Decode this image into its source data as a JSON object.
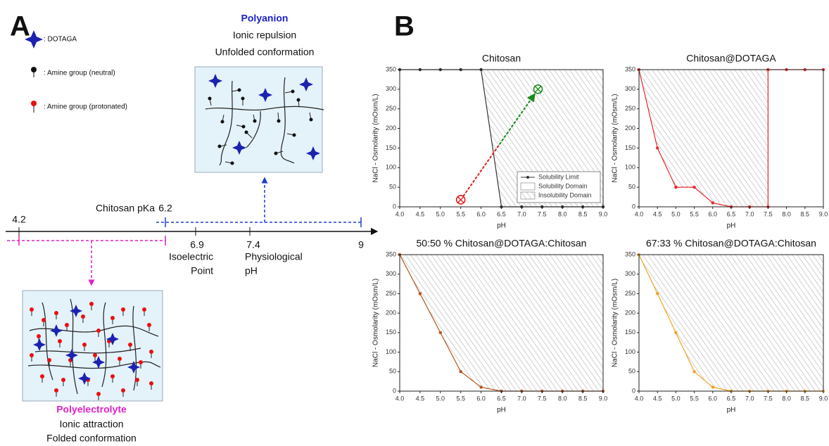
{
  "panel_a": {
    "label": "A",
    "legend": [
      ": DOTAGA",
      ": Amine group (neutral)",
      ": Amine group (protonated)"
    ],
    "top_box": {
      "title": "Polyanion",
      "lines": [
        "Ionic repulsion",
        "Unfolded conformation"
      ]
    },
    "bottom_box": {
      "title": "Polyelectrolyte",
      "lines": [
        "Ionic attraction",
        "Folded conformation"
      ]
    },
    "axis": {
      "ticks": [
        "4.2",
        "6.2",
        "6.9",
        "7.4",
        "9"
      ],
      "pka_label": "Chitosan pKa",
      "isoelectric": [
        "Isoelectric",
        "Point"
      ],
      "physiological": [
        "Physiological",
        "pH"
      ]
    }
  },
  "panel_b_label": "B",
  "chart_data": [
    {
      "type": "line",
      "title": "Chitosan",
      "xlabel": "pH",
      "ylabel": "NaCl - Osmolarity (mOsm/L)",
      "x": [
        4,
        4.5,
        5,
        5.5,
        6,
        6.5,
        7,
        7.5,
        8,
        8.5,
        9
      ],
      "series": [
        {
          "name": "Solubility Limit",
          "color": "#333333",
          "values": [
            350,
            350,
            350,
            350,
            350,
            0,
            0,
            0,
            0,
            0,
            0
          ]
        }
      ],
      "domains": [
        "Solubility Domain",
        "Insolubility Domain"
      ],
      "legend": "lower right",
      "markers": [
        {
          "x": 5.5,
          "y": 18,
          "color": "#e02020"
        },
        {
          "x": 7.4,
          "y": 300,
          "color": "#1a8a1a"
        }
      ],
      "xlim": [
        4,
        9
      ],
      "ylim": [
        0,
        350
      ],
      "xticks": [
        {
          "value": 4,
          "label": "4.0"
        },
        {
          "value": 4.5,
          "label": "4.5"
        },
        {
          "value": 5,
          "label": "5.0"
        },
        {
          "value": 5.5,
          "label": "5.5"
        },
        {
          "value": 6,
          "label": "6.0"
        },
        {
          "value": 6.5,
          "label": "6.5"
        },
        {
          "value": 7,
          "label": "7.0"
        },
        {
          "value": 7.5,
          "label": "7.5"
        },
        {
          "value": 8,
          "label": "8.0"
        },
        {
          "value": 8.5,
          "label": "8.5"
        },
        {
          "value": 9,
          "label": "9.0"
        }
      ],
      "yticks": [
        0,
        50,
        100,
        150,
        200,
        250,
        300,
        350
      ]
    },
    {
      "type": "line",
      "title": "Chitosan@DOTAGA",
      "xlabel": "pH",
      "ylabel": "NaCl - Osmolarity (mOsm/L)",
      "x": [
        4,
        4.5,
        5,
        5.5,
        6,
        6.5,
        7,
        7.5,
        7.5,
        8,
        8.5,
        9
      ],
      "series": [
        {
          "color": "#e8262a",
          "values": [
            350,
            150,
            50,
            50,
            10,
            0,
            0,
            0,
            350,
            350,
            350,
            350
          ]
        }
      ],
      "xlim": [
        4,
        9
      ],
      "ylim": [
        0,
        350
      ],
      "xticks": [
        {
          "value": 4,
          "label": "4.0"
        },
        {
          "value": 4.5,
          "label": "4.5"
        },
        {
          "value": 5,
          "label": "5.0"
        },
        {
          "value": 5.5,
          "label": "5.5"
        },
        {
          "value": 6,
          "label": "6.0"
        },
        {
          "value": 6.5,
          "label": "6.5"
        },
        {
          "value": 7,
          "label": "7.0"
        },
        {
          "value": 7.5,
          "label": "7.5"
        },
        {
          "value": 8,
          "label": "8.0"
        },
        {
          "value": 8.5,
          "label": "8.5"
        },
        {
          "value": 9,
          "label": "9.0"
        }
      ],
      "yticks": [
        0,
        50,
        100,
        150,
        200,
        250,
        300,
        350
      ]
    },
    {
      "type": "line",
      "title": "50:50 % Chitosan@DOTAGA:Chitosan",
      "xlabel": "pH",
      "ylabel": "NaCl - Osmolarity (mOsm/L)",
      "x": [
        4,
        4.5,
        5,
        5.5,
        6,
        6.5,
        7,
        7.5,
        8,
        8.5,
        9
      ],
      "series": [
        {
          "color": "#b5541c",
          "values": [
            350,
            250,
            150,
            50,
            10,
            0,
            0,
            0,
            0,
            0,
            0
          ]
        }
      ],
      "xlim": [
        4,
        9
      ],
      "ylim": [
        0,
        350
      ],
      "xticks": [
        {
          "value": 4,
          "label": "4.0"
        },
        {
          "value": 4.5,
          "label": "4.5"
        },
        {
          "value": 5,
          "label": "5.0"
        },
        {
          "value": 5.5,
          "label": "5.5"
        },
        {
          "value": 6,
          "label": "6.0"
        },
        {
          "value": 6.5,
          "label": "6.5"
        },
        {
          "value": 7,
          "label": "7.0"
        },
        {
          "value": 7.5,
          "label": "7.5"
        },
        {
          "value": 8,
          "label": "8.0"
        },
        {
          "value": 8.5,
          "label": "8.5"
        },
        {
          "value": 9,
          "label": "9.0"
        }
      ],
      "yticks": [
        0,
        50,
        100,
        150,
        200,
        250,
        300,
        350
      ]
    },
    {
      "type": "line",
      "title": "67:33 % Chitosan@DOTAGA:Chitosan",
      "xlabel": "pH",
      "ylabel": "NaCl - Osmolarity (mOsm/L)",
      "x": [
        4,
        4.5,
        5,
        5.5,
        6,
        6.5,
        7,
        7.5,
        8,
        8.5,
        9
      ],
      "series": [
        {
          "color": "#f5a020",
          "values": [
            350,
            250,
            150,
            50,
            10,
            0,
            0,
            0,
            0,
            0,
            0
          ]
        }
      ],
      "xlim": [
        4,
        9
      ],
      "ylim": [
        0,
        350
      ],
      "xticks": [
        {
          "value": 4,
          "label": "4.0"
        },
        {
          "value": 4.5,
          "label": "4.5"
        },
        {
          "value": 5,
          "label": "5.0"
        },
        {
          "value": 5.5,
          "label": "5.5"
        },
        {
          "value": 6,
          "label": "6.0"
        },
        {
          "value": 6.5,
          "label": "6.5"
        },
        {
          "value": 7,
          "label": "7.0"
        },
        {
          "value": 7.5,
          "label": "7.5"
        },
        {
          "value": 8,
          "label": "8.0"
        },
        {
          "value": 8.5,
          "label": "8.5"
        },
        {
          "value": 9,
          "label": "9.0"
        }
      ],
      "yticks": [
        0,
        50,
        100,
        150,
        200,
        250,
        300,
        350
      ]
    }
  ]
}
